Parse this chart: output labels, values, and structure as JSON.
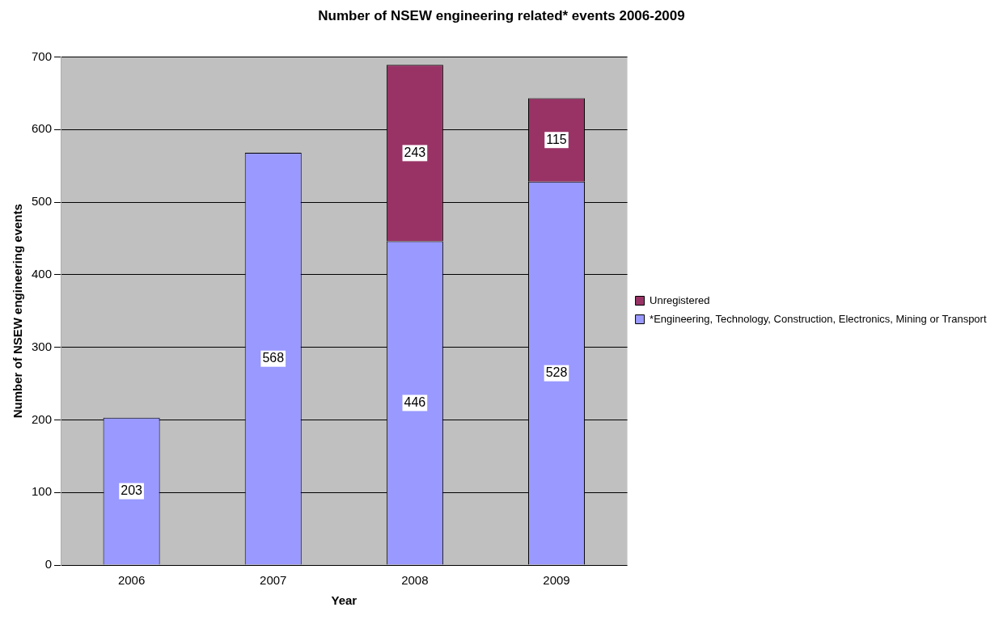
{
  "chart_data": {
    "type": "bar",
    "title": "Number of NSEW engineering related* events 2006-2009",
    "xlabel": "Year",
    "ylabel": "Number of NSEW engineering events",
    "categories": [
      "2006",
      "2007",
      "2008",
      "2009"
    ],
    "series": [
      {
        "name": "*Engineering, Technology, Construction, Electronics, Mining or Transport",
        "color": "#9999ff",
        "values": [
          203,
          568,
          446,
          528
        ]
      },
      {
        "name": "Unregistered",
        "color": "#993366",
        "values": [
          null,
          null,
          243,
          115
        ]
      }
    ],
    "stacked": true,
    "ylim": [
      0,
      700
    ],
    "yticks": [
      0,
      100,
      200,
      300,
      400,
      500,
      600,
      700
    ],
    "grid": "y",
    "legend": "right",
    "data_labels": true
  }
}
